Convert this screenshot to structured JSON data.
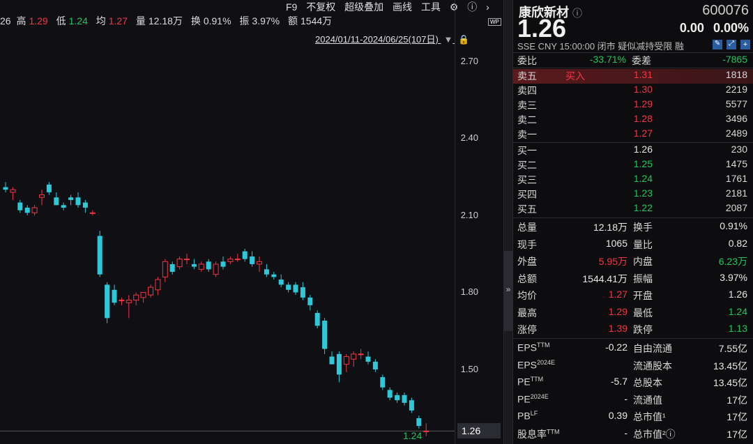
{
  "info": {
    "partial": "26",
    "high_label": "高",
    "high": "1.29",
    "low_label": "低",
    "low": "1.24",
    "avg_label": "均",
    "avg": "1.27",
    "vol_label": "量",
    "vol": "12.18万",
    "turn_label": "换",
    "turn": "0.91%",
    "amp_label": "振",
    "amp": "3.97%",
    "amt_label": "额",
    "amt": "1544万"
  },
  "toolbar": {
    "f9": "F9",
    "adjust": "不复权",
    "overlay": "超级叠加",
    "draw": "画线",
    "tools": "工具"
  },
  "date_range": "2024/01/11-2024/06/25(107日)",
  "axis_ticks": [
    "2.70",
    "2.40",
    "2.10",
    "1.80",
    "1.50"
  ],
  "last_price_tag": "1.26",
  "low_marker": "1.24",
  "colors": {
    "up": "#f23645",
    "down": "#2ec8d8",
    "bg": "#101014"
  },
  "stock": {
    "name": "康欣新材",
    "code": "600076",
    "price": "1.26",
    "change": "0.00",
    "change_pct": "0.00%",
    "meta": "SSE  CNY  15:00:00  闭市 疑似减持受限 融"
  },
  "commission": {
    "ratio_label": "委比",
    "ratio": "-33.71%",
    "diff_label": "委差",
    "diff": "-7865"
  },
  "asks": [
    {
      "label": "卖五",
      "tag": "买入",
      "price": "1.31",
      "vol": "1818"
    },
    {
      "label": "卖四",
      "price": "1.30",
      "vol": "2219"
    },
    {
      "label": "卖三",
      "price": "1.29",
      "vol": "5577"
    },
    {
      "label": "卖二",
      "price": "1.28",
      "vol": "3496"
    },
    {
      "label": "卖一",
      "price": "1.27",
      "vol": "2489"
    }
  ],
  "bids": [
    {
      "label": "买一",
      "price": "1.26",
      "vol": "230"
    },
    {
      "label": "买二",
      "price": "1.25",
      "vol": "1475"
    },
    {
      "label": "买三",
      "price": "1.24",
      "vol": "1761"
    },
    {
      "label": "买四",
      "price": "1.23",
      "vol": "2181"
    },
    {
      "label": "买五",
      "price": "1.22",
      "vol": "2087"
    }
  ],
  "stats": [
    {
      "l1": "总量",
      "v1": "12.18万",
      "c1": "white",
      "l2": "换手",
      "v2": "0.91%",
      "c2": "white"
    },
    {
      "l1": "现手",
      "v1": "1065",
      "c1": "white",
      "l2": "量比",
      "v2": "0.82",
      "c2": "white"
    },
    {
      "l1": "外盘",
      "v1": "5.95万",
      "c1": "red",
      "l2": "内盘",
      "v2": "6.23万",
      "c2": "green"
    },
    {
      "l1": "总额",
      "v1": "1544.41万",
      "c1": "white",
      "l2": "振幅",
      "v2": "3.97%",
      "c2": "white"
    },
    {
      "l1": "均价",
      "v1": "1.27",
      "c1": "red",
      "l2": "开盘",
      "v2": "1.26",
      "c2": "white"
    },
    {
      "l1": "最高",
      "v1": "1.29",
      "c1": "red",
      "l2": "最低",
      "v2": "1.24",
      "c2": "green"
    },
    {
      "l1": "涨停",
      "v1": "1.39",
      "c1": "red",
      "l2": "跌停",
      "v2": "1.13",
      "c2": "green"
    }
  ],
  "fundamentals": [
    {
      "l1": "EPS",
      "s1": "TTM",
      "v1": "-0.22",
      "l2": "自由流通",
      "v2": "7.55亿"
    },
    {
      "l1": "EPS",
      "s1": "2024E",
      "v1": "",
      "l2": "流通股本",
      "v2": "13.45亿"
    },
    {
      "l1": "PE",
      "s1": "TTM",
      "v1": "-5.7",
      "l2": "总股本",
      "v2": "13.45亿"
    },
    {
      "l1": "PE",
      "s1": "2024E",
      "v1": "-",
      "l2": "流通值",
      "v2": "17亿"
    },
    {
      "l1": "PB",
      "s1": "LF",
      "v1": "0.39",
      "l2": "总市值¹",
      "v2": "17亿"
    },
    {
      "l1": "股息率",
      "s1": "TTM",
      "v1": "-",
      "l2": "总市值²ⓘ",
      "v2": "17亿"
    }
  ],
  "candles": [
    [
      2.21,
      2.23,
      2.19,
      2.2
    ],
    [
      2.19,
      2.21,
      2.16,
      2.2
    ],
    [
      2.15,
      2.16,
      2.11,
      2.12
    ],
    [
      2.13,
      2.14,
      2.1,
      2.11
    ],
    [
      2.11,
      2.14,
      2.1,
      2.13
    ],
    [
      2.17,
      2.2,
      2.14,
      2.18
    ],
    [
      2.22,
      2.23,
      2.18,
      2.19
    ],
    [
      2.17,
      2.19,
      2.14,
      2.14
    ],
    [
      2.14,
      2.15,
      2.12,
      2.13
    ],
    [
      2.17,
      2.18,
      2.14,
      2.16
    ],
    [
      2.17,
      2.19,
      2.13,
      2.14
    ],
    [
      2.15,
      2.16,
      2.11,
      2.13
    ],
    [
      2.11,
      2.12,
      2.1,
      2.11
    ],
    [
      2.02,
      2.04,
      1.86,
      1.87
    ],
    [
      1.83,
      1.84,
      1.68,
      1.7
    ],
    [
      1.81,
      1.83,
      1.75,
      1.76
    ],
    [
      1.77,
      1.78,
      1.75,
      1.77
    ],
    [
      1.76,
      1.79,
      1.7,
      1.77
    ],
    [
      1.77,
      1.8,
      1.75,
      1.79
    ],
    [
      1.78,
      1.8,
      1.76,
      1.8
    ],
    [
      1.79,
      1.83,
      1.78,
      1.82
    ],
    [
      1.81,
      1.86,
      1.79,
      1.85
    ],
    [
      1.86,
      1.93,
      1.84,
      1.92
    ],
    [
      1.91,
      1.92,
      1.87,
      1.88
    ],
    [
      1.9,
      1.94,
      1.89,
      1.93
    ],
    [
      1.93,
      1.95,
      1.91,
      1.93
    ],
    [
      1.91,
      1.93,
      1.89,
      1.9
    ],
    [
      1.89,
      1.92,
      1.88,
      1.91
    ],
    [
      1.92,
      1.93,
      1.88,
      1.89
    ],
    [
      1.87,
      1.92,
      1.86,
      1.91
    ],
    [
      1.92,
      1.94,
      1.89,
      1.9
    ],
    [
      1.92,
      1.94,
      1.91,
      1.93
    ],
    [
      1.93,
      1.95,
      1.92,
      1.93
    ],
    [
      1.96,
      1.97,
      1.92,
      1.93
    ],
    [
      1.94,
      1.96,
      1.9,
      1.91
    ],
    [
      1.91,
      1.94,
      1.88,
      1.92
    ],
    [
      1.89,
      1.91,
      1.86,
      1.87
    ],
    [
      1.87,
      1.88,
      1.85,
      1.86
    ],
    [
      1.85,
      1.87,
      1.82,
      1.83
    ],
    [
      1.83,
      1.84,
      1.8,
      1.81
    ],
    [
      1.83,
      1.84,
      1.79,
      1.8
    ],
    [
      1.82,
      1.84,
      1.77,
      1.78
    ],
    [
      1.78,
      1.79,
      1.73,
      1.75
    ],
    [
      1.72,
      1.73,
      1.66,
      1.67
    ],
    [
      1.69,
      1.7,
      1.56,
      1.58
    ],
    [
      1.55,
      1.57,
      1.52,
      1.52
    ],
    [
      1.56,
      1.57,
      1.45,
      1.48
    ],
    [
      1.52,
      1.56,
      1.49,
      1.55
    ],
    [
      1.54,
      1.57,
      1.51,
      1.56
    ],
    [
      1.56,
      1.58,
      1.54,
      1.56
    ],
    [
      1.55,
      1.57,
      1.52,
      1.53
    ],
    [
      1.53,
      1.54,
      1.49,
      1.5
    ],
    [
      1.47,
      1.48,
      1.42,
      1.43
    ],
    [
      1.42,
      1.43,
      1.38,
      1.39
    ],
    [
      1.4,
      1.41,
      1.37,
      1.38
    ],
    [
      1.4,
      1.41,
      1.36,
      1.37
    ],
    [
      1.38,
      1.39,
      1.33,
      1.34
    ],
    [
      1.31,
      1.32,
      1.27,
      1.28
    ],
    [
      1.26,
      1.29,
      1.24,
      1.26
    ]
  ]
}
